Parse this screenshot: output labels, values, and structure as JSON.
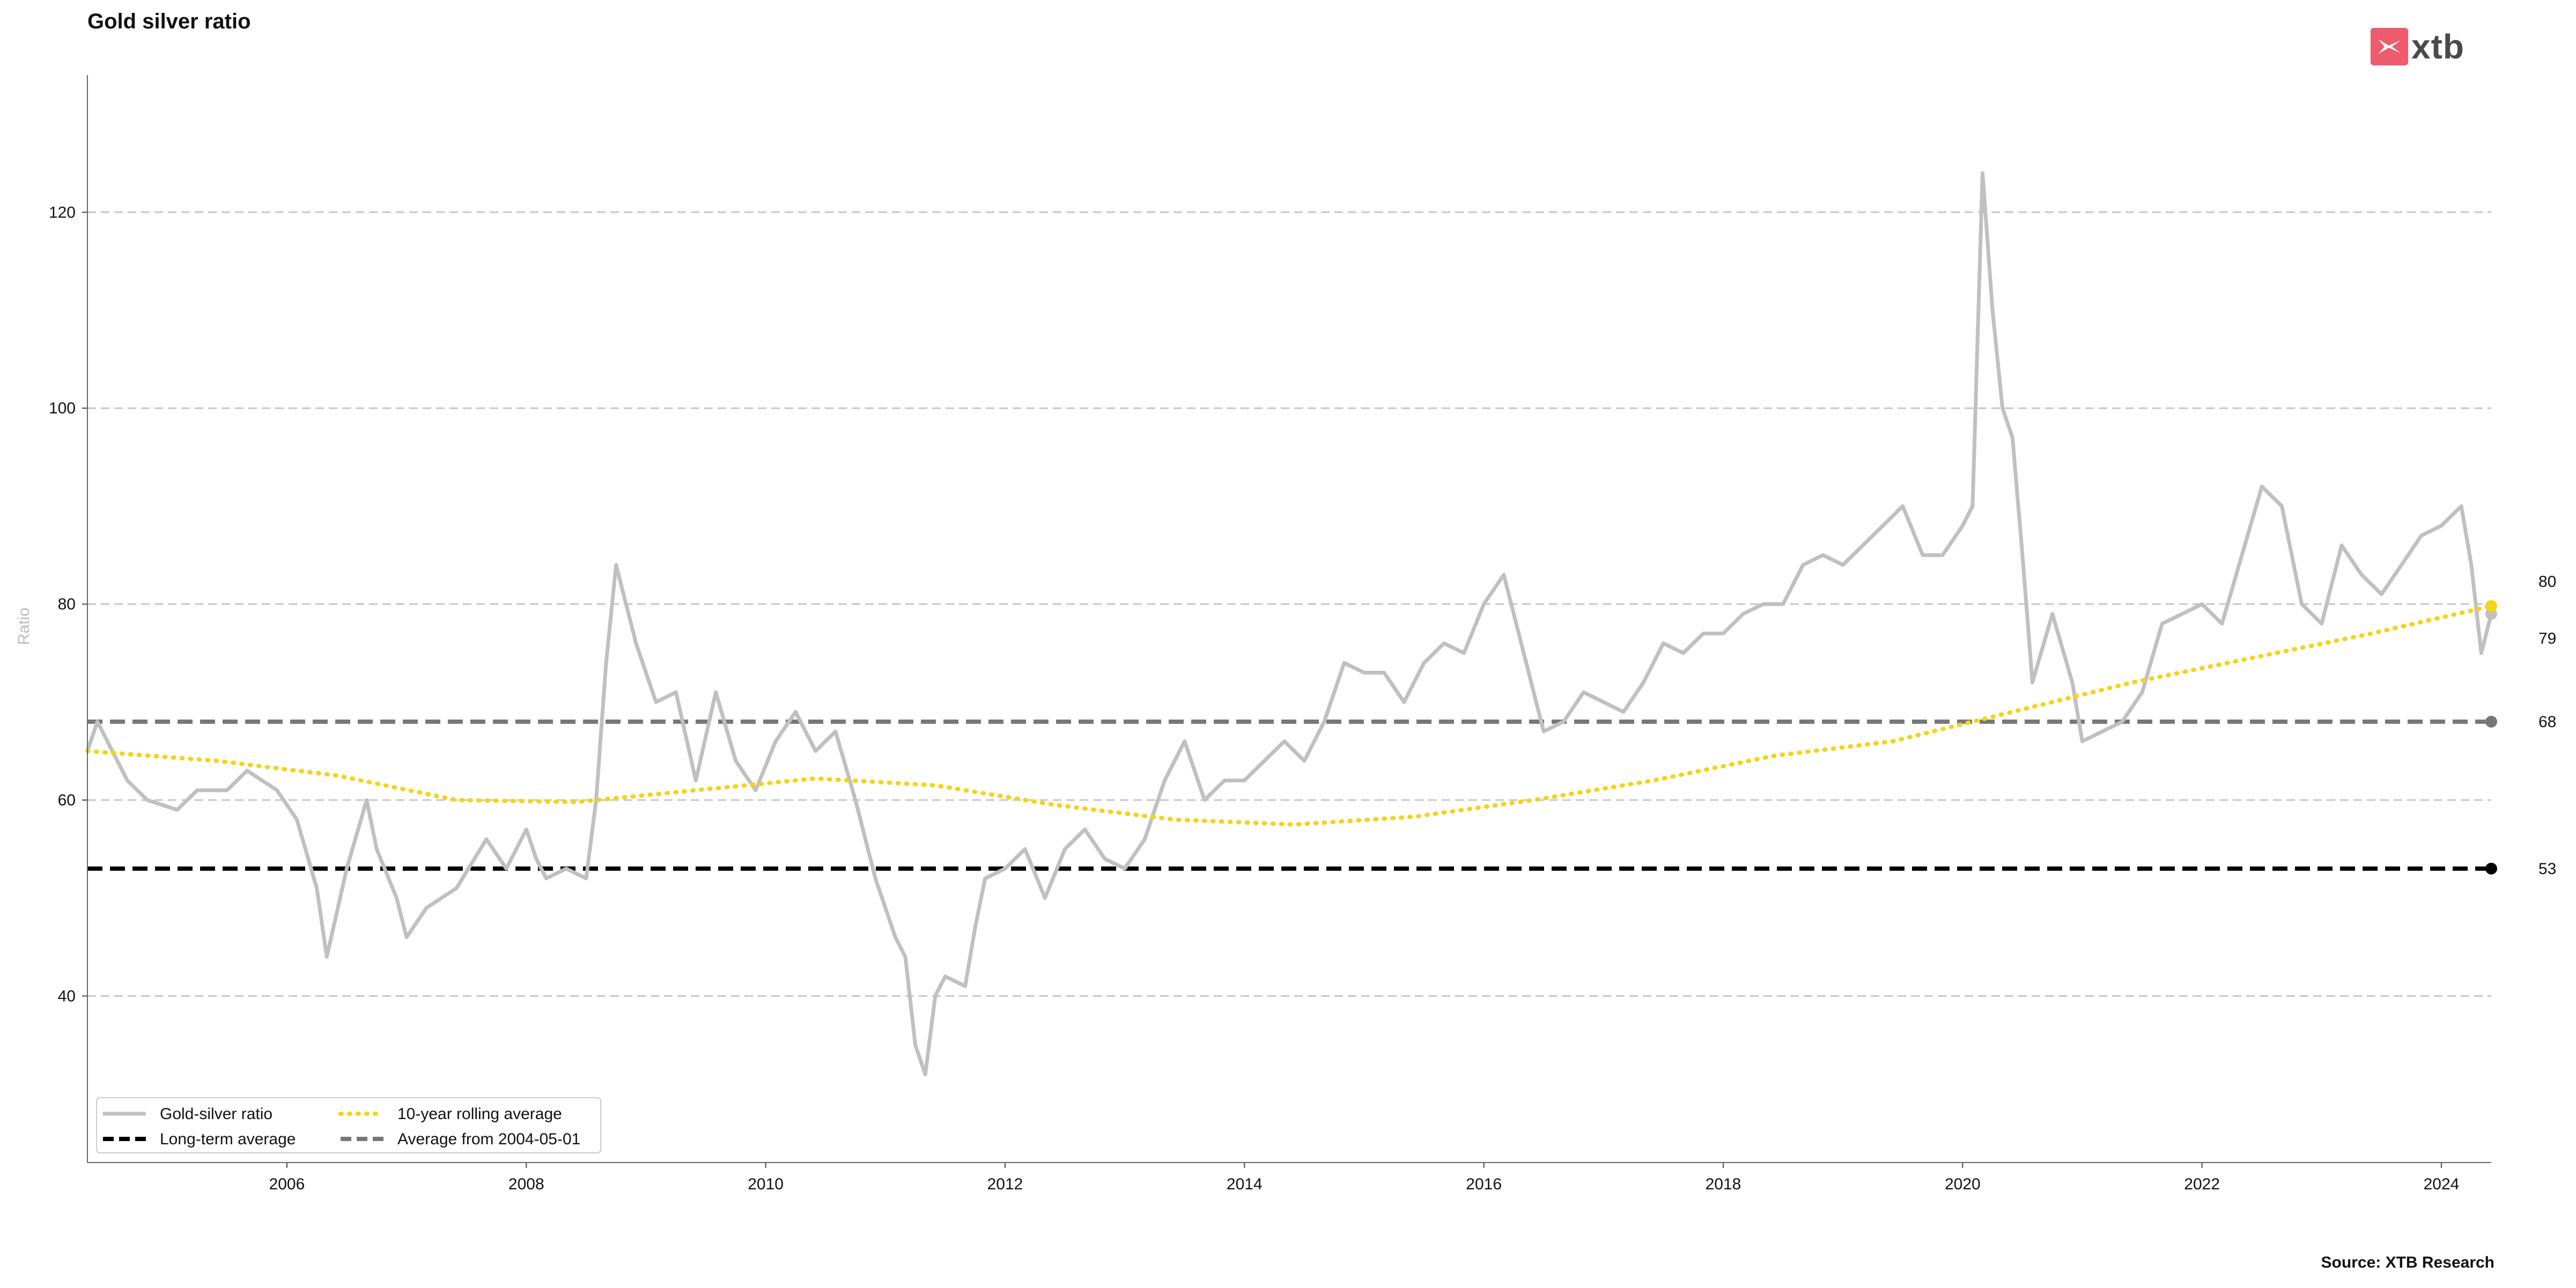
{
  "header": {
    "title": "Gold silver ratio"
  },
  "logo": {
    "text": "xtb",
    "brand_color": "#ee5b6e"
  },
  "footer": {
    "source": "Source: XTB Research"
  },
  "chart_data": {
    "type": "line",
    "title": "Gold silver ratio",
    "xlabel": "",
    "ylabel": "Ratio",
    "xlim": [
      "2004-05-01",
      "2024-06-01"
    ],
    "ylim": [
      23,
      134
    ],
    "x_ticks": [
      "2006",
      "2008",
      "2010",
      "2012",
      "2014",
      "2016",
      "2018",
      "2020",
      "2022",
      "2024"
    ],
    "y_ticks": [
      40,
      60,
      80,
      100,
      120
    ],
    "grid": "horizontal dashed",
    "legend_position": "bottom-left",
    "legend": [
      {
        "name": "Gold-silver ratio",
        "style": "solid",
        "color": "#c0c0c0"
      },
      {
        "name": "10-year rolling average",
        "style": "dotted",
        "color": "#f5d317"
      },
      {
        "name": "Long-term average",
        "style": "dashed",
        "color": "#000000"
      },
      {
        "name": "Average from 2004-05-01",
        "style": "dashed",
        "color": "#777777"
      }
    ],
    "series": [
      {
        "name": "Gold-silver ratio",
        "color": "#c0c0c0",
        "points": [
          [
            "2004-05-01",
            65
          ],
          [
            "2004-06-01",
            68
          ],
          [
            "2004-09-01",
            62
          ],
          [
            "2004-11-01",
            60
          ],
          [
            "2005-02-01",
            59
          ],
          [
            "2005-04-01",
            61
          ],
          [
            "2005-07-01",
            61
          ],
          [
            "2005-09-01",
            63
          ],
          [
            "2005-12-01",
            61
          ],
          [
            "2006-02-01",
            58
          ],
          [
            "2006-04-01",
            51
          ],
          [
            "2006-05-01",
            44
          ],
          [
            "2006-07-01",
            53
          ],
          [
            "2006-09-01",
            60
          ],
          [
            "2006-10-01",
            55
          ],
          [
            "2006-12-01",
            50
          ],
          [
            "2007-01-01",
            46
          ],
          [
            "2007-03-01",
            49
          ],
          [
            "2007-06-01",
            51
          ],
          [
            "2007-09-01",
            56
          ],
          [
            "2007-11-01",
            53
          ],
          [
            "2008-01-01",
            57
          ],
          [
            "2008-02-01",
            54
          ],
          [
            "2008-03-01",
            52
          ],
          [
            "2008-05-01",
            53
          ],
          [
            "2008-07-01",
            52
          ],
          [
            "2008-08-01",
            60
          ],
          [
            "2008-09-01",
            74
          ],
          [
            "2008-10-01",
            84
          ],
          [
            "2008-11-01",
            80
          ],
          [
            "2008-12-01",
            76
          ],
          [
            "2009-02-01",
            70
          ],
          [
            "2009-04-01",
            71
          ],
          [
            "2009-06-01",
            62
          ],
          [
            "2009-08-01",
            71
          ],
          [
            "2009-10-01",
            64
          ],
          [
            "2009-12-01",
            61
          ],
          [
            "2010-02-01",
            66
          ],
          [
            "2010-04-01",
            69
          ],
          [
            "2010-06-01",
            65
          ],
          [
            "2010-08-01",
            67
          ],
          [
            "2010-10-01",
            60
          ],
          [
            "2010-12-01",
            52
          ],
          [
            "2011-02-01",
            46
          ],
          [
            "2011-03-01",
            44
          ],
          [
            "2011-04-01",
            35
          ],
          [
            "2011-05-01",
            32
          ],
          [
            "2011-06-01",
            40
          ],
          [
            "2011-07-01",
            42
          ],
          [
            "2011-09-01",
            41
          ],
          [
            "2011-10-01",
            47
          ],
          [
            "2011-11-01",
            52
          ],
          [
            "2012-01-01",
            53
          ],
          [
            "2012-03-01",
            55
          ],
          [
            "2012-05-01",
            50
          ],
          [
            "2012-07-01",
            55
          ],
          [
            "2012-09-01",
            57
          ],
          [
            "2012-11-01",
            54
          ],
          [
            "2013-01-01",
            53
          ],
          [
            "2013-03-01",
            56
          ],
          [
            "2013-05-01",
            62
          ],
          [
            "2013-07-01",
            66
          ],
          [
            "2013-09-01",
            60
          ],
          [
            "2013-11-01",
            62
          ],
          [
            "2014-01-01",
            62
          ],
          [
            "2014-03-01",
            64
          ],
          [
            "2014-05-01",
            66
          ],
          [
            "2014-07-01",
            64
          ],
          [
            "2014-09-01",
            68
          ],
          [
            "2014-11-01",
            74
          ],
          [
            "2015-01-01",
            73
          ],
          [
            "2015-03-01",
            73
          ],
          [
            "2015-05-01",
            70
          ],
          [
            "2015-07-01",
            74
          ],
          [
            "2015-09-01",
            76
          ],
          [
            "2015-11-01",
            75
          ],
          [
            "2016-01-01",
            80
          ],
          [
            "2016-03-01",
            83
          ],
          [
            "2016-05-01",
            75
          ],
          [
            "2016-07-01",
            67
          ],
          [
            "2016-09-01",
            68
          ],
          [
            "2016-11-01",
            71
          ],
          [
            "2017-01-01",
            70
          ],
          [
            "2017-03-01",
            69
          ],
          [
            "2017-05-01",
            72
          ],
          [
            "2017-07-01",
            76
          ],
          [
            "2017-09-01",
            75
          ],
          [
            "2017-11-01",
            77
          ],
          [
            "2018-01-01",
            77
          ],
          [
            "2018-03-01",
            79
          ],
          [
            "2018-05-01",
            80
          ],
          [
            "2018-07-01",
            80
          ],
          [
            "2018-09-01",
            84
          ],
          [
            "2018-11-01",
            85
          ],
          [
            "2019-01-01",
            84
          ],
          [
            "2019-03-01",
            86
          ],
          [
            "2019-05-01",
            88
          ],
          [
            "2019-07-01",
            90
          ],
          [
            "2019-09-01",
            85
          ],
          [
            "2019-11-01",
            85
          ],
          [
            "2020-01-01",
            88
          ],
          [
            "2020-02-01",
            90
          ],
          [
            "2020-03-01",
            124
          ],
          [
            "2020-04-01",
            110
          ],
          [
            "2020-05-01",
            100
          ],
          [
            "2020-06-01",
            97
          ],
          [
            "2020-07-01",
            85
          ],
          [
            "2020-08-01",
            72
          ],
          [
            "2020-10-01",
            79
          ],
          [
            "2020-12-01",
            72
          ],
          [
            "2021-01-01",
            66
          ],
          [
            "2021-03-01",
            67
          ],
          [
            "2021-05-01",
            68
          ],
          [
            "2021-07-01",
            71
          ],
          [
            "2021-09-01",
            78
          ],
          [
            "2021-11-01",
            79
          ],
          [
            "2022-01-01",
            80
          ],
          [
            "2022-03-01",
            78
          ],
          [
            "2022-05-01",
            85
          ],
          [
            "2022-07-01",
            92
          ],
          [
            "2022-09-01",
            90
          ],
          [
            "2022-11-01",
            80
          ],
          [
            "2023-01-01",
            78
          ],
          [
            "2023-03-01",
            86
          ],
          [
            "2023-05-01",
            83
          ],
          [
            "2023-07-01",
            81
          ],
          [
            "2023-09-01",
            84
          ],
          [
            "2023-11-01",
            87
          ],
          [
            "2024-01-01",
            88
          ],
          [
            "2024-03-01",
            90
          ],
          [
            "2024-04-01",
            84
          ],
          [
            "2024-05-01",
            75
          ],
          [
            "2024-06-01",
            79
          ]
        ]
      },
      {
        "name": "10-year rolling average",
        "color": "#f5d317",
        "points": [
          [
            "2004-05-01",
            65
          ],
          [
            "2005-06-01",
            64
          ],
          [
            "2006-06-01",
            62.5
          ],
          [
            "2007-06-01",
            60
          ],
          [
            "2008-06-01",
            59.8
          ],
          [
            "2009-06-01",
            61
          ],
          [
            "2010-06-01",
            62.2
          ],
          [
            "2011-06-01",
            61.5
          ],
          [
            "2012-06-01",
            59.5
          ],
          [
            "2013-06-01",
            58
          ],
          [
            "2014-06-01",
            57.5
          ],
          [
            "2015-06-01",
            58.3
          ],
          [
            "2016-06-01",
            60
          ],
          [
            "2017-06-01",
            62
          ],
          [
            "2018-06-01",
            64.5
          ],
          [
            "2019-06-01",
            66
          ],
          [
            "2020-06-01",
            69
          ],
          [
            "2021-06-01",
            72
          ],
          [
            "2022-06-01",
            74.5
          ],
          [
            "2023-06-01",
            77
          ],
          [
            "2024-06-01",
            79.8
          ]
        ]
      }
    ],
    "reference_lines": [
      {
        "name": "Long-term average",
        "value": 53,
        "color": "#000000"
      },
      {
        "name": "Average from 2004-05-01",
        "value": 68,
        "color": "#777777"
      }
    ],
    "end_labels": [
      "80",
      "79",
      "68",
      "53"
    ]
  }
}
